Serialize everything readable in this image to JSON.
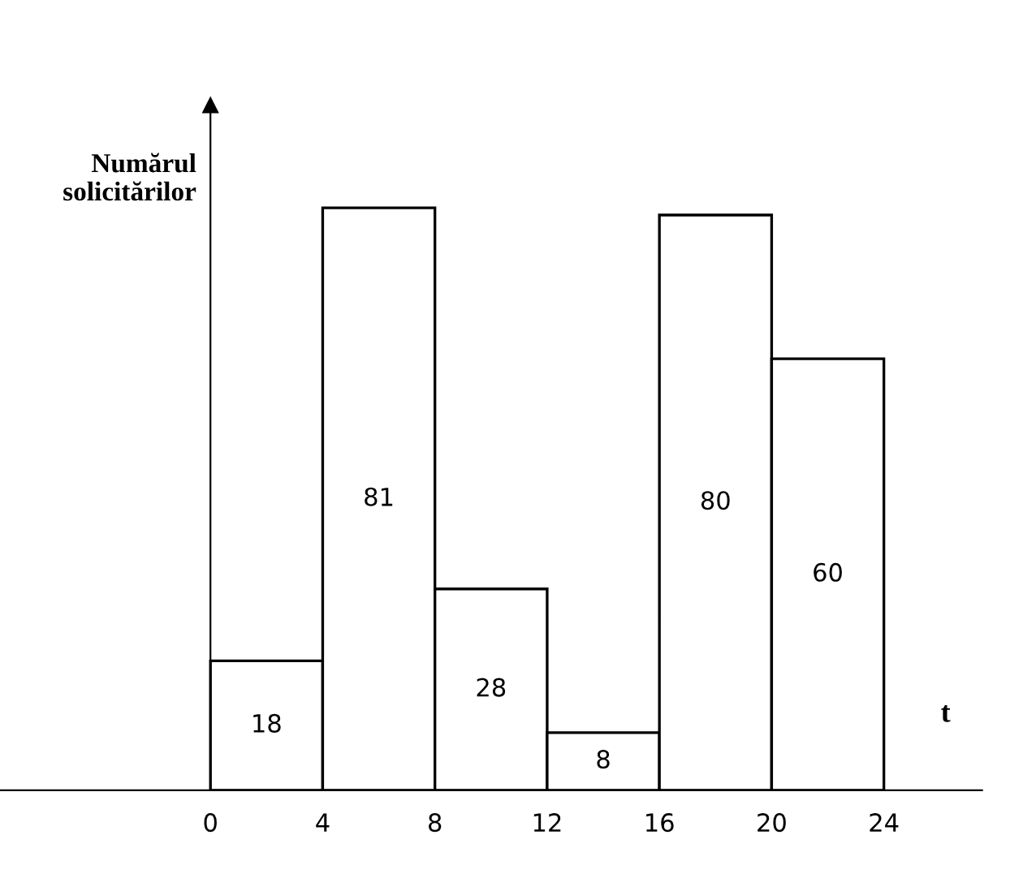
{
  "chart_data": {
    "type": "bar",
    "ylabel": "Numărul\nsolicitărilor",
    "xlabel": "t",
    "x": [
      2,
      6,
      10,
      14,
      18,
      22
    ],
    "values": [
      18,
      81,
      28,
      8,
      80,
      60
    ],
    "data_labels": true,
    "color": "#ffffff",
    "xlim": [
      -7.5,
      27.5
    ],
    "xticks": [
      0,
      4,
      8,
      12,
      16,
      20,
      24
    ],
    "tick_labels": "x"
  }
}
